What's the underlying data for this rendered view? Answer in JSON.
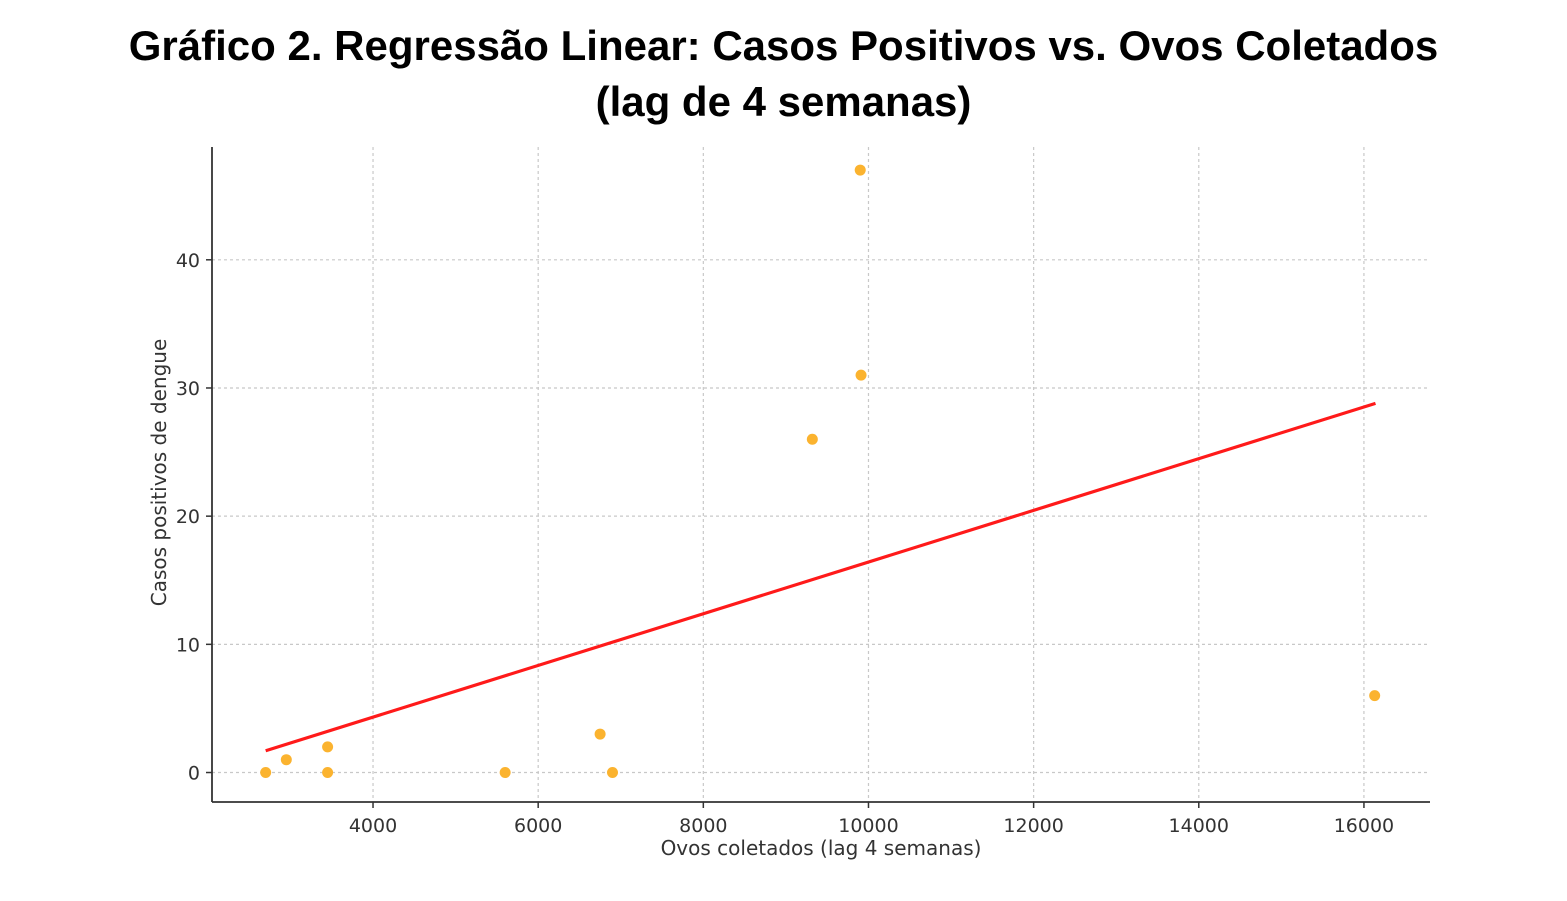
{
  "chart_data": {
    "type": "scatter",
    "title_line1": "Gráfico 2. Regressão Linear: Casos Positivos vs. Ovos Coletados",
    "title_line2": "(lag de 4 semanas)",
    "xlabel": "Ovos coletados (lag 4 semanas)",
    "ylabel": "Casos positivos de dengue",
    "xlim": [
      2050,
      16800
    ],
    "ylim": [
      -2.3,
      48.8
    ],
    "xticks": [
      4000,
      6000,
      8000,
      10000,
      12000,
      14000,
      16000
    ],
    "yticks": [
      0,
      10,
      20,
      30,
      40
    ],
    "grid": true,
    "points": [
      {
        "x": 2700,
        "y": 0
      },
      {
        "x": 2950,
        "y": 1
      },
      {
        "x": 3450,
        "y": 2
      },
      {
        "x": 3450,
        "y": 0
      },
      {
        "x": 5600,
        "y": 0
      },
      {
        "x": 6750,
        "y": 3
      },
      {
        "x": 6900,
        "y": 0
      },
      {
        "x": 9320,
        "y": 26
      },
      {
        "x": 9900,
        "y": 47
      },
      {
        "x": 9910,
        "y": 31
      },
      {
        "x": 16130,
        "y": 6
      }
    ],
    "regression_line": {
      "x": [
        2700,
        16140
      ],
      "y": [
        1.7,
        28.8
      ]
    },
    "colors": {
      "points": "#fbb32f",
      "regression": "#ff1a1a",
      "grid": "#c8c8c8",
      "axis": "#333333"
    }
  }
}
